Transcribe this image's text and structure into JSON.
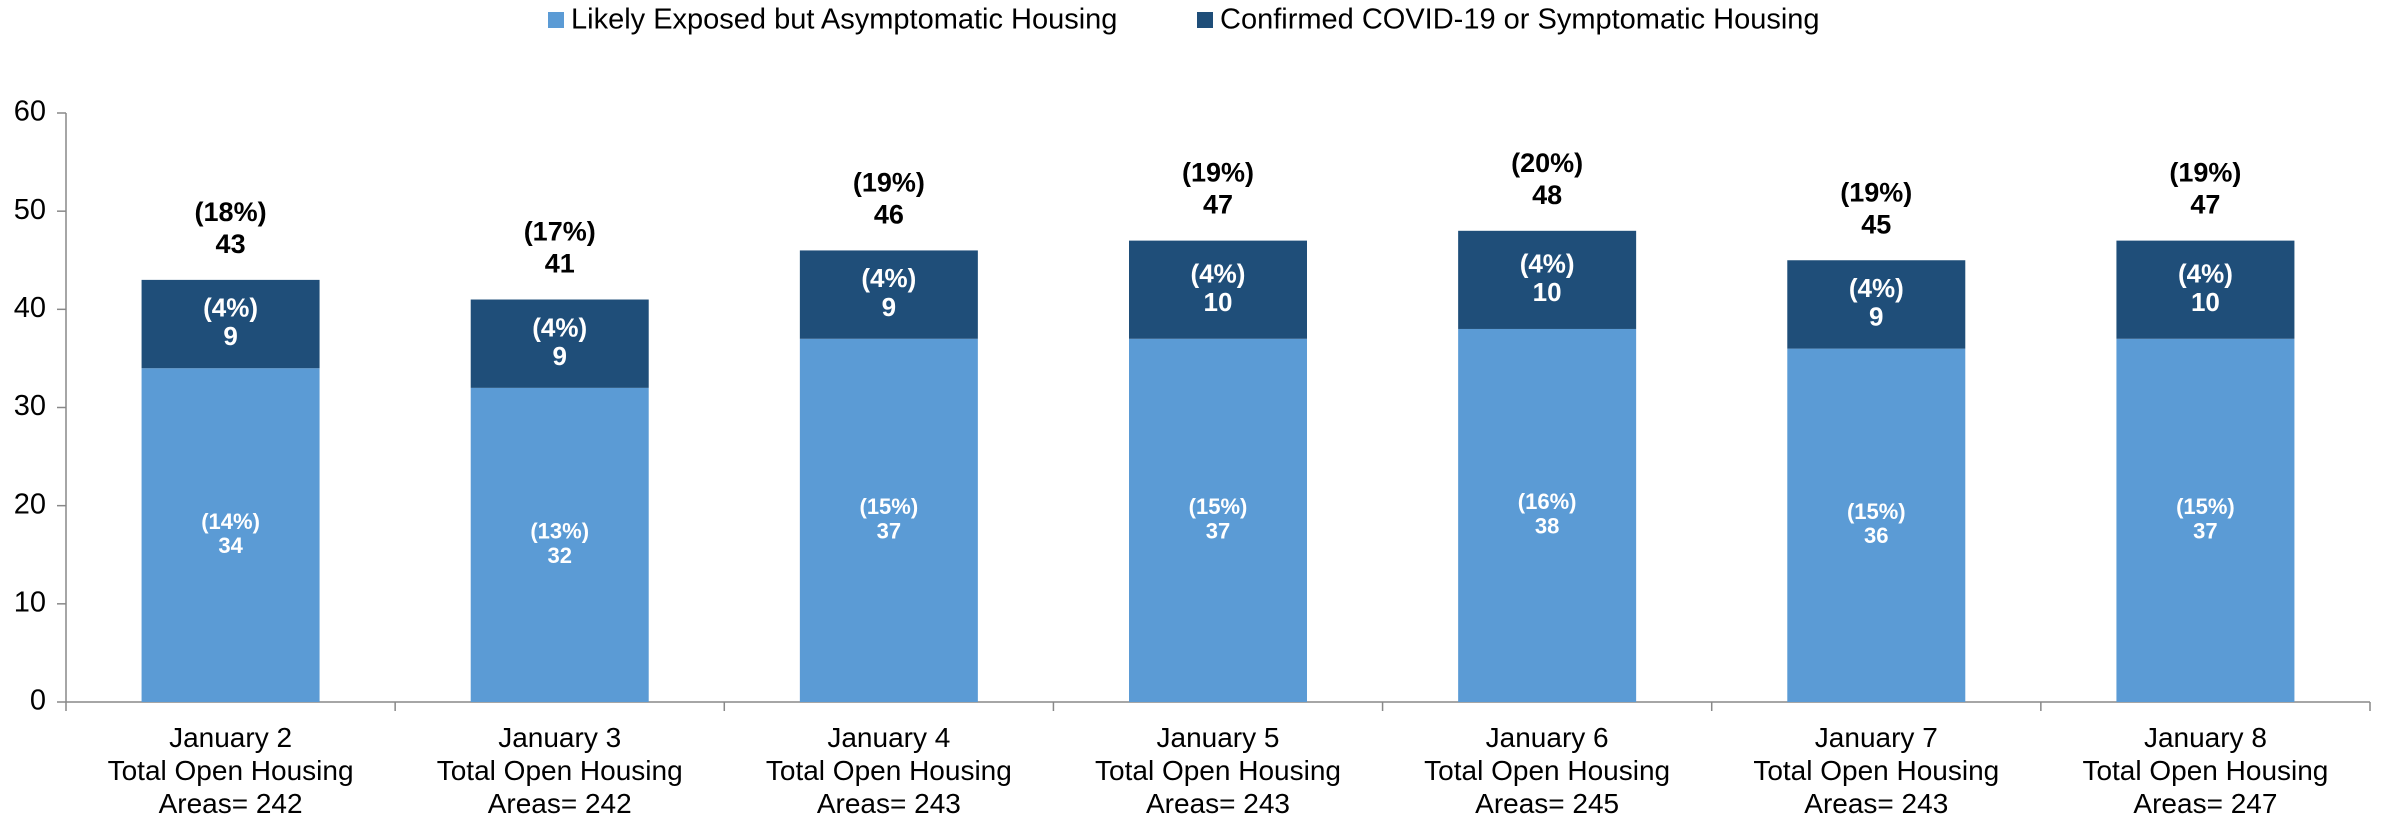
{
  "chart_data": {
    "type": "stacked_bar",
    "categories": [
      "January 2\nTotal Open Housing\nAreas= 242",
      "January 3\nTotal Open Housing\nAreas= 242",
      "January 4\nTotal Open Housing\nAreas= 243",
      "January 5\nTotal Open Housing\nAreas= 243",
      "January 6\nTotal Open Housing\nAreas= 245",
      "January 7\nTotal Open Housing\nAreas= 243",
      "January 8\nTotal Open Housing\nAreas= 247"
    ],
    "series": [
      {
        "name": "Likely Exposed but Asymptomatic Housing",
        "color": "#5b9bd5",
        "values": [
          34,
          32,
          37,
          37,
          38,
          36,
          37
        ],
        "percent_labels": [
          "(14%)",
          "(13%)",
          "(15%)",
          "(15%)",
          "(16%)",
          "(15%)",
          "(15%)"
        ]
      },
      {
        "name": "Confirmed COVID-19 or Symptomatic Housing",
        "color": "#1f4e79",
        "values": [
          9,
          9,
          9,
          10,
          10,
          9,
          10
        ],
        "percent_labels": [
          "(4%)",
          "(4%)",
          "(4%)",
          "(4%)",
          "(4%)",
          "(4%)",
          "(4%)"
        ]
      }
    ],
    "totals": [
      43,
      41,
      46,
      47,
      48,
      45,
      47
    ],
    "total_percent_labels": [
      "(18%)",
      "(17%)",
      "(19%)",
      "(19%)",
      "(20%)",
      "(19%)",
      "(19%)"
    ],
    "ylim": [
      0,
      60
    ],
    "yticks": [
      0,
      10,
      20,
      30,
      40,
      50,
      60
    ],
    "grid": false,
    "legend": "top"
  }
}
